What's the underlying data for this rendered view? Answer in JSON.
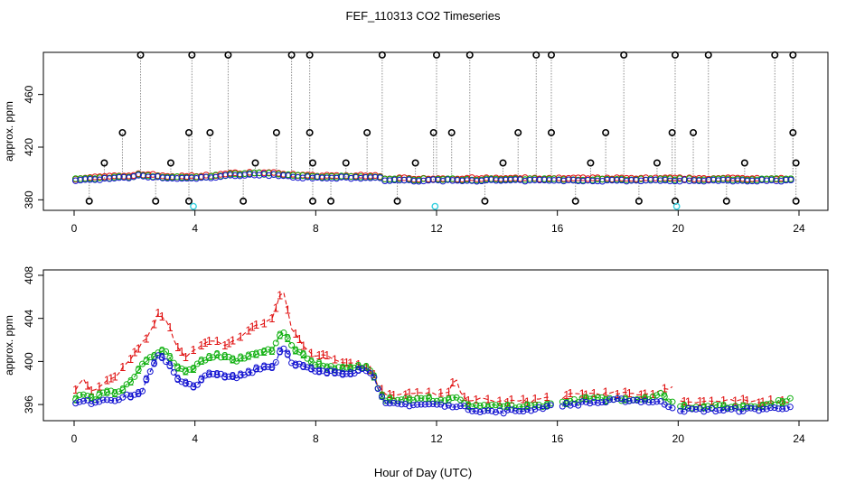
{
  "title": "FEF_110313  CO2 Timeseries",
  "xlabel": "Hour of Day (UTC)",
  "colors": {
    "series1": "#e01010",
    "series2": "#10b010",
    "series3": "#1010d0",
    "outlier": "#000000",
    "flag": "#33d0e0",
    "dashes": "#909090"
  },
  "chart_data": [
    {
      "type": "scatter",
      "panel": "top",
      "title": "FEF_110313  CO2 Timeseries",
      "ylabel": "approx. ppm",
      "xlim": [
        0,
        24
      ],
      "ylim": [
        372,
        492
      ],
      "xticks": [
        "0",
        "4",
        "8",
        "12",
        "16",
        "20",
        "24"
      ],
      "yticks": [
        "380",
        "420",
        "460"
      ],
      "outliers_high": [
        2.2,
        3.9,
        5.1,
        7.2,
        7.8,
        10.2,
        12.0,
        13.1,
        15.3,
        15.8,
        18.2,
        19.9,
        21.0,
        23.2,
        23.8
      ],
      "outliers_mid": [
        1.6,
        3.8,
        4.5,
        6.7,
        7.8,
        9.7,
        11.9,
        12.5,
        14.7,
        15.8,
        17.6,
        19.8,
        20.5,
        23.8
      ],
      "outliers_low": [
        1.0,
        3.2,
        6.0,
        7.9,
        9.0,
        11.3,
        14.2,
        17.1,
        19.3,
        22.2,
        23.9
      ],
      "outliers_bottom": [
        0.5,
        2.7,
        3.8,
        5.6,
        7.9,
        8.5,
        10.7,
        13.6,
        16.6,
        18.7,
        19.9,
        21.6,
        23.9
      ],
      "flags": [
        3.95,
        11.95,
        19.95
      ],
      "flag_value": 375,
      "series_names": [
        "1",
        "2",
        "3"
      ]
    },
    {
      "type": "line",
      "panel": "bottom",
      "ylabel": "approx. ppm",
      "xlim": [
        0,
        24
      ],
      "ylim": [
        394.5,
        408.5
      ],
      "xticks": [
        "0",
        "4",
        "8",
        "12",
        "16",
        "20",
        "24"
      ],
      "yticks": [
        "396",
        "400",
        "404",
        "408"
      ],
      "series": [
        {
          "name": "1",
          "label": "1"
        },
        {
          "name": "2",
          "label": "2"
        },
        {
          "name": "3",
          "label": "3"
        }
      ],
      "anchors_x": [
        0,
        0.3,
        0.6,
        1,
        1.4,
        1.8,
        2.2,
        2.6,
        2.8,
        3.1,
        3.4,
        3.7,
        4,
        4.3,
        4.6,
        5,
        5.4,
        5.8,
        6.2,
        6.6,
        6.9,
        7.2,
        7.6,
        8,
        8.4,
        8.8,
        9.2,
        9.6,
        9.9,
        10.1,
        10.3,
        10.6,
        11,
        11.5,
        12,
        12.4,
        12.6,
        12.9,
        13.3,
        14,
        14.5,
        15,
        15.6,
        15.8,
        16,
        16.5,
        17,
        17.5,
        18,
        18.5,
        19,
        19.4,
        19.6,
        19.8,
        20,
        20.5,
        21,
        22,
        23,
        23.7
      ],
      "series1_anchors": [
        397.2,
        398.5,
        397.0,
        398.0,
        398.5,
        400.0,
        401.5,
        403.0,
        404.5,
        403.5,
        401.5,
        400.5,
        401.0,
        401.5,
        402.0,
        401.5,
        402.0,
        403.0,
        403.5,
        404.0,
        407.0,
        403.0,
        401.5,
        400.5,
        400.5,
        400.0,
        400.0,
        399.5,
        399.0,
        397.5,
        397.0,
        397.0,
        397.0,
        397.0,
        397.0,
        397.0,
        398.5,
        396.5,
        396.5,
        396.3,
        396.3,
        396.3,
        396.6,
        396.6,
        396.6,
        396.9,
        397.0,
        397.0,
        397.0,
        397.0,
        397.0,
        397.2,
        397.4,
        397.8,
        396.3,
        396.3,
        396.3,
        396.3,
        396.3,
        396.3
      ],
      "series2_anchors": [
        396.5,
        397.0,
        396.5,
        397.0,
        397.2,
        397.8,
        399.5,
        400.5,
        401.0,
        400.8,
        399.5,
        399.0,
        399.5,
        400.0,
        400.5,
        400.5,
        400.0,
        400.5,
        401.0,
        401.0,
        403.0,
        401.5,
        400.5,
        399.8,
        399.5,
        399.3,
        399.3,
        399.5,
        399.0,
        397.3,
        396.5,
        396.5,
        396.5,
        396.5,
        396.4,
        396.4,
        396.8,
        396.0,
        395.8,
        395.8,
        395.8,
        395.8,
        396.0,
        396.0,
        396.2,
        396.3,
        396.5,
        396.5,
        396.5,
        396.5,
        396.6,
        397.0,
        396.5,
        396.3,
        395.8,
        395.8,
        395.8,
        395.8,
        396.0,
        396.5
      ],
      "series3_anchors": [
        396.0,
        396.3,
        396.2,
        396.5,
        396.5,
        396.8,
        397.0,
        399.5,
        400.5,
        400.0,
        398.5,
        398.0,
        397.5,
        398.5,
        399.0,
        398.5,
        398.5,
        399.0,
        399.5,
        399.5,
        401.5,
        400.0,
        399.5,
        399.0,
        399.0,
        399.0,
        399.0,
        399.3,
        399.0,
        397.0,
        396.0,
        396.0,
        396.0,
        396.0,
        396.0,
        395.8,
        396.0,
        395.7,
        395.5,
        395.3,
        395.4,
        395.5,
        395.8,
        395.8,
        396.0,
        396.0,
        396.2,
        396.2,
        396.4,
        396.4,
        396.3,
        396.2,
        396.0,
        395.8,
        395.5,
        395.5,
        395.5,
        395.5,
        395.6,
        395.8
      ],
      "gaps": [
        [
          15.85,
          16.05
        ],
        [
          19.9,
          20.05
        ]
      ]
    }
  ]
}
